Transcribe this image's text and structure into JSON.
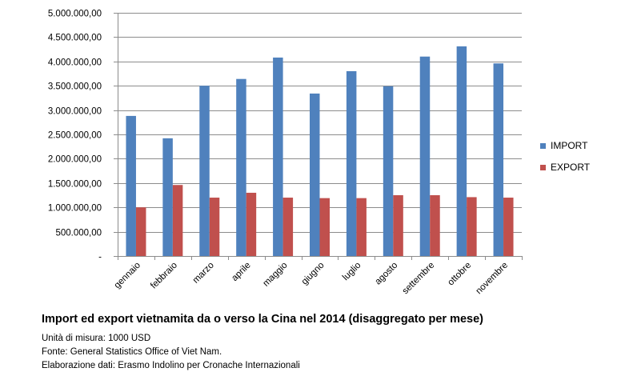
{
  "chart_data": {
    "type": "bar",
    "categories": [
      "gennaio",
      "febbraio",
      "marzo",
      "aprile",
      "maggio",
      "giugno",
      "luglio",
      "agosto",
      "settembre",
      "ottobre",
      "novembre"
    ],
    "series": [
      {
        "name": "IMPORT",
        "color": "#4F81BD",
        "values": [
          2880000,
          2420000,
          3500000,
          3640000,
          4080000,
          3340000,
          3800000,
          3490000,
          4100000,
          4310000,
          3960000
        ]
      },
      {
        "name": "EXPORT",
        "color": "#C0504D",
        "values": [
          1000000,
          1460000,
          1200000,
          1300000,
          1200000,
          1190000,
          1190000,
          1250000,
          1250000,
          1210000,
          1200000
        ]
      }
    ],
    "ylim": [
      0,
      5000000
    ],
    "y_ticks": [
      0,
      500000,
      1000000,
      1500000,
      2000000,
      2500000,
      3000000,
      3500000,
      4000000,
      4500000,
      5000000
    ],
    "y_tick_labels": [
      "-",
      "500.000,00",
      "1.000.000,00",
      "1.500.000,00",
      "2.000.000,00",
      "2.500.000,00",
      "3.000.000,00",
      "3.500.000,00",
      "4.000.000,00",
      "4.500.000,00",
      "5.000.000,00"
    ],
    "grid": true,
    "legend_position": "right"
  },
  "caption": {
    "title": "Import ed export vietnamita da o verso la Cina nel 2014 (disaggregato per mese)",
    "unit": "Unità di misura: 1000 USD",
    "source": "Fonte: General Statistics Office of Viet Nam.",
    "elaboration": "Elaborazione dati: Erasmo Indolino per Cronache Internazionali"
  }
}
